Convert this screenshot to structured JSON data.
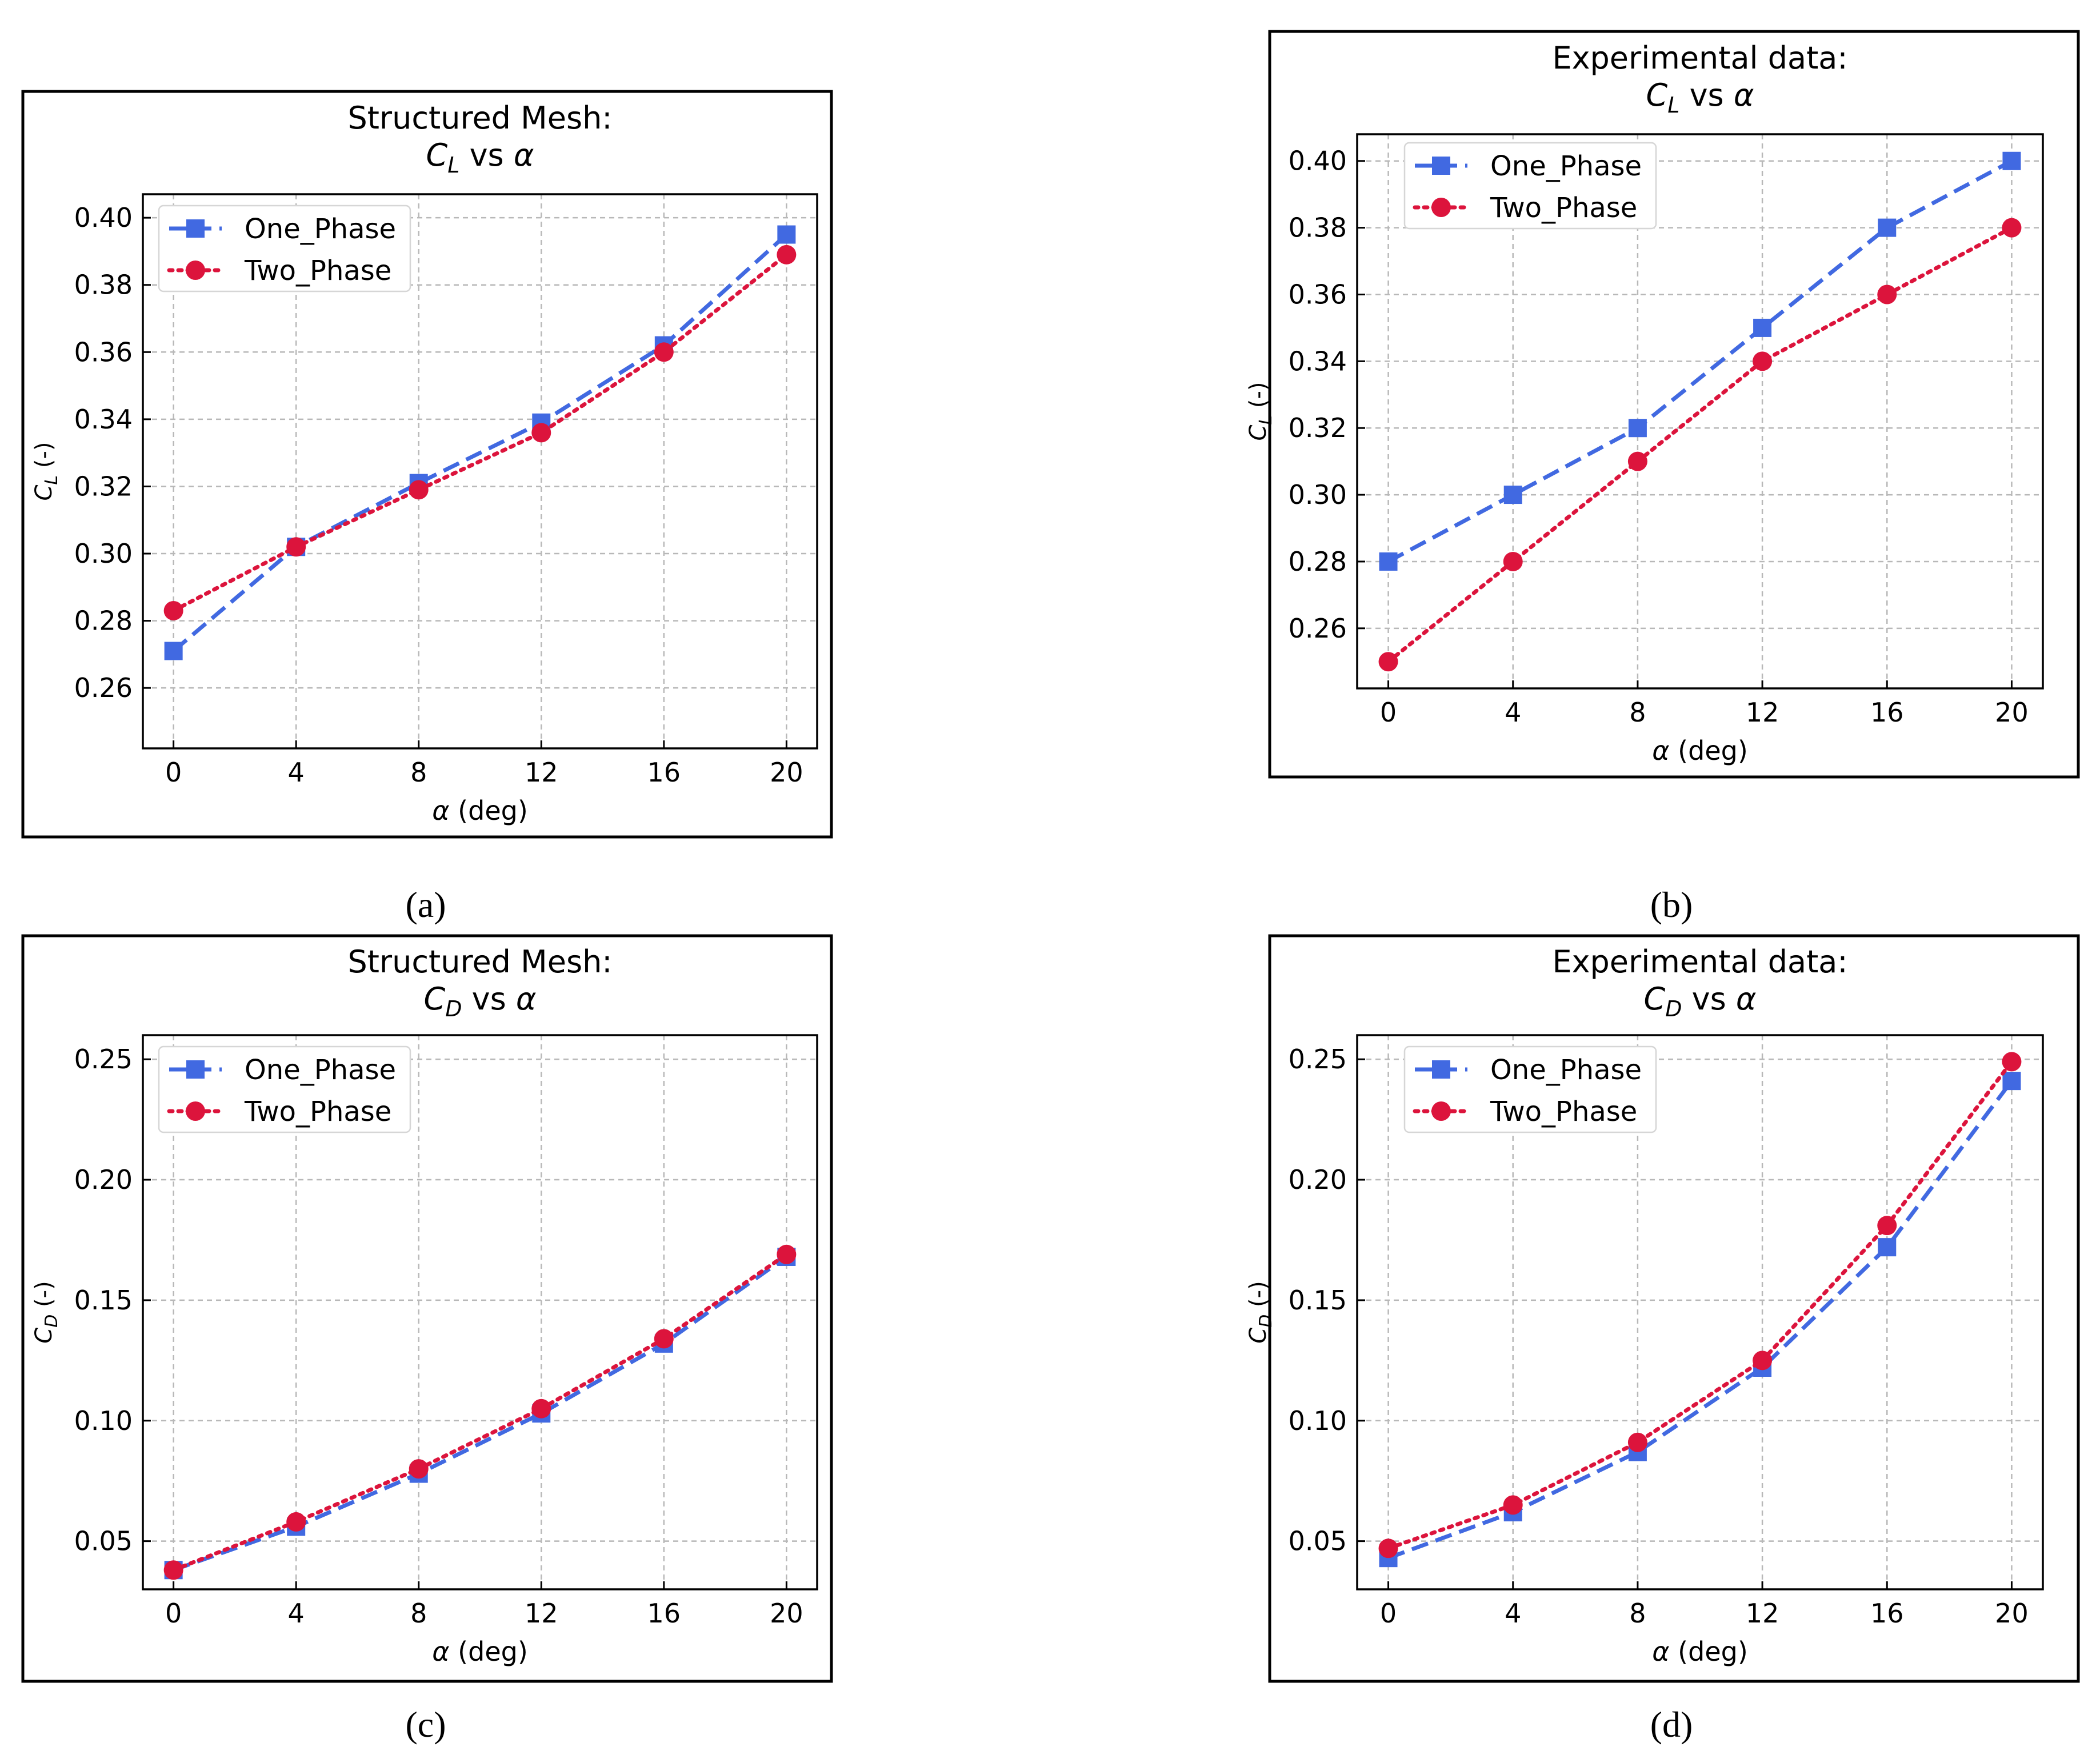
{
  "figure": {
    "captions": [
      "(a)",
      "(b)",
      "(c)",
      "(d)"
    ]
  },
  "colors": {
    "one_phase": "#4169e1",
    "two_phase": "#dc143c"
  },
  "chart_data": [
    {
      "id": "a",
      "type": "line",
      "title_line1": "Structured Mesh:",
      "title_line2_symbol": "C",
      "title_line2_sub": "L",
      "title_line2_text": "vs",
      "title_line2_alpha": "α",
      "xlabel_symbol": "α",
      "xlabel_text": "(deg)",
      "ylabel_symbol": "C",
      "ylabel_sub": "L",
      "ylabel_text": "(-)",
      "x": [
        0,
        4,
        8,
        12,
        16,
        20
      ],
      "xlim": [
        -1,
        21
      ],
      "ylim": [
        0.242,
        0.407
      ],
      "xticks": [
        0,
        4,
        8,
        12,
        16,
        20
      ],
      "xtick_labels": [
        "0",
        "4",
        "8",
        "12",
        "16",
        "20"
      ],
      "yticks": [
        0.26,
        0.28,
        0.3,
        0.32,
        0.34,
        0.36,
        0.38,
        0.4
      ],
      "ytick_labels": [
        "0.26",
        "0.28",
        "0.30",
        "0.32",
        "0.34",
        "0.36",
        "0.38",
        "0.40"
      ],
      "grid": true,
      "legend_position": "upper-left",
      "series": [
        {
          "name": "One_Phase",
          "marker": "square",
          "line": "dashed",
          "values": [
            0.271,
            0.302,
            0.321,
            0.339,
            0.362,
            0.395
          ]
        },
        {
          "name": "Two_Phase",
          "marker": "circle",
          "line": "dotted",
          "values": [
            0.283,
            0.302,
            0.319,
            0.336,
            0.36,
            0.389
          ]
        }
      ]
    },
    {
      "id": "b",
      "type": "line",
      "title_line1": "Experimental data:",
      "title_line2_symbol": "C",
      "title_line2_sub": "L",
      "title_line2_text": "vs",
      "title_line2_alpha": "α",
      "xlabel_symbol": "α",
      "xlabel_text": "(deg)",
      "ylabel_symbol": "C",
      "ylabel_sub": "L",
      "ylabel_text": "(-)",
      "x": [
        0,
        4,
        8,
        12,
        16,
        20
      ],
      "xlim": [
        -1,
        21
      ],
      "ylim": [
        0.242,
        0.408
      ],
      "xticks": [
        0,
        4,
        8,
        12,
        16,
        20
      ],
      "xtick_labels": [
        "0",
        "4",
        "8",
        "12",
        "16",
        "20"
      ],
      "yticks": [
        0.26,
        0.28,
        0.3,
        0.32,
        0.34,
        0.36,
        0.38,
        0.4
      ],
      "ytick_labels": [
        "0.26",
        "0.28",
        "0.30",
        "0.32",
        "0.34",
        "0.36",
        "0.38",
        "0.40"
      ],
      "grid": true,
      "legend_position": "upper-left",
      "series": [
        {
          "name": "One_Phase",
          "marker": "square",
          "line": "dashed",
          "values": [
            0.28,
            0.3,
            0.32,
            0.35,
            0.38,
            0.4
          ]
        },
        {
          "name": "Two_Phase",
          "marker": "circle",
          "line": "dotted",
          "values": [
            0.25,
            0.28,
            0.31,
            0.34,
            0.36,
            0.38
          ]
        }
      ]
    },
    {
      "id": "c",
      "type": "line",
      "title_line1": "Structured Mesh:",
      "title_line2_symbol": "C",
      "title_line2_sub": "D",
      "title_line2_text": "vs",
      "title_line2_alpha": "α",
      "xlabel_symbol": "α",
      "xlabel_text": "(deg)",
      "ylabel_symbol": "C",
      "ylabel_sub": "D",
      "ylabel_text": "(-)",
      "x": [
        0,
        4,
        8,
        12,
        16,
        20
      ],
      "xlim": [
        -1,
        21
      ],
      "ylim": [
        0.03,
        0.26
      ],
      "xticks": [
        0,
        4,
        8,
        12,
        16,
        20
      ],
      "xtick_labels": [
        "0",
        "4",
        "8",
        "12",
        "16",
        "20"
      ],
      "yticks": [
        0.05,
        0.1,
        0.15,
        0.2,
        0.25
      ],
      "ytick_labels": [
        "0.05",
        "0.10",
        "0.15",
        "0.20",
        "0.25"
      ],
      "grid": true,
      "legend_position": "upper-left",
      "series": [
        {
          "name": "One_Phase",
          "marker": "square",
          "line": "dashed",
          "values": [
            0.038,
            0.056,
            0.078,
            0.103,
            0.132,
            0.168
          ]
        },
        {
          "name": "Two_Phase",
          "marker": "circle",
          "line": "dotted",
          "values": [
            0.038,
            0.058,
            0.08,
            0.105,
            0.134,
            0.169
          ]
        }
      ]
    },
    {
      "id": "d",
      "type": "line",
      "title_line1": "Experimental data:",
      "title_line2_symbol": "C",
      "title_line2_sub": "D",
      "title_line2_text": "vs",
      "title_line2_alpha": "α",
      "xlabel_symbol": "α",
      "xlabel_text": "(deg)",
      "ylabel_symbol": "C",
      "ylabel_sub": "D",
      "ylabel_text": "(-)",
      "x": [
        0,
        4,
        8,
        12,
        16,
        20
      ],
      "xlim": [
        -1,
        21
      ],
      "ylim": [
        0.03,
        0.26
      ],
      "xticks": [
        0,
        4,
        8,
        12,
        16,
        20
      ],
      "xtick_labels": [
        "0",
        "4",
        "8",
        "12",
        "16",
        "20"
      ],
      "yticks": [
        0.05,
        0.1,
        0.15,
        0.2,
        0.25
      ],
      "ytick_labels": [
        "0.05",
        "0.10",
        "0.15",
        "0.20",
        "0.25"
      ],
      "grid": true,
      "legend_position": "upper-left",
      "series": [
        {
          "name": "One_Phase",
          "marker": "square",
          "line": "dashed",
          "values": [
            0.043,
            0.062,
            0.087,
            0.122,
            0.172,
            0.241
          ]
        },
        {
          "name": "Two_Phase",
          "marker": "circle",
          "line": "dotted",
          "values": [
            0.047,
            0.065,
            0.091,
            0.125,
            0.181,
            0.249
          ]
        }
      ]
    }
  ]
}
